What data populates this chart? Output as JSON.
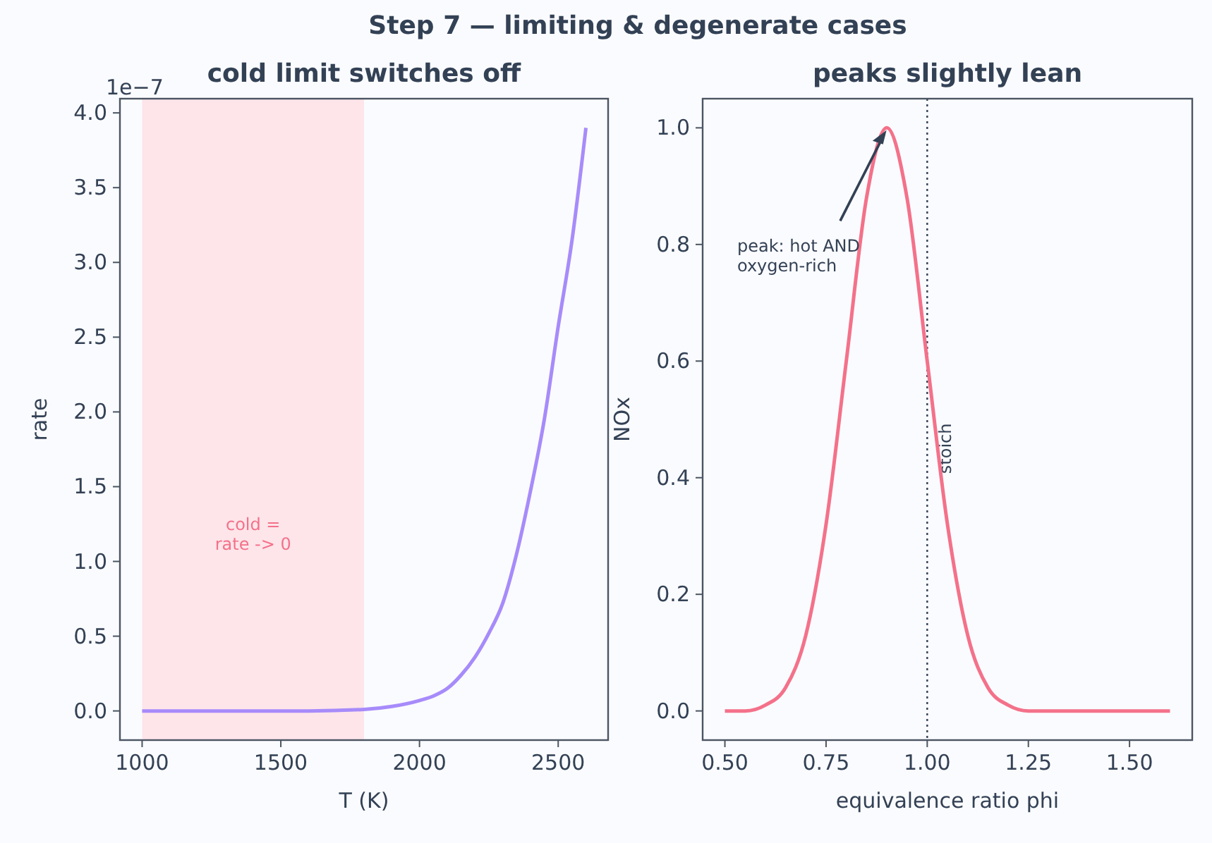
{
  "chart_data": [
    {
      "type": "line",
      "title": "cold limit switches off",
      "xlabel": "T (K)",
      "ylabel": "rate",
      "annotations": [
        "1e−7",
        "Step 7 — limiting & degenerate cases"
      ],
      "x": [
        1000,
        1200,
        1400,
        1600,
        1800,
        1900,
        2000,
        2050,
        2100,
        2150,
        2200,
        2250,
        2300,
        2350,
        2400,
        2450,
        2500,
        2550,
        2600
      ],
      "series": [
        {
          "color": "#a78bfa",
          "values": [
            0,
            0,
            0,
            0,
            0.01,
            0.03,
            0.07,
            0.1,
            0.15,
            0.24,
            0.36,
            0.52,
            0.72,
            1.05,
            1.47,
            1.95,
            2.57,
            3.15,
            3.9
          ]
        }
      ],
      "xlim": [
        920,
        2680
      ],
      "xticks": [
        1000,
        1500,
        2000,
        2500
      ],
      "ylim": [
        -0.195,
        4.095
      ],
      "yticks": [
        {
          "value": 0,
          "label": "0.0"
        },
        {
          "value": 0.5,
          "label": "0.5"
        },
        {
          "value": 1,
          "label": "1.0"
        },
        {
          "value": 1.5,
          "label": "1.5"
        },
        {
          "value": 2,
          "label": "2.0"
        },
        {
          "value": 2.5,
          "label": "2.5"
        },
        {
          "value": 3,
          "label": "3.0"
        },
        {
          "value": 3.5,
          "label": "3.5"
        },
        {
          "value": 4,
          "label": "4.0"
        }
      ],
      "bands": [
        {
          "axis": "x",
          "from": 1000,
          "to": 1800,
          "label": "cold =\nrate -> 0",
          "color": "#fde2e8"
        }
      ],
      "line_style": "solid",
      "marker": "none",
      "grid": false
    },
    {
      "type": "line",
      "title": "peaks slightly lean",
      "xlabel": "equivalence ratio phi",
      "ylabel": "NOx",
      "annotations": [
        {
          "text": "peak: hot AND\noxygen-rich",
          "x": 0.9,
          "y": 1.0
        }
      ],
      "x": [
        0.5,
        0.55,
        0.6,
        0.65,
        0.7,
        0.75,
        0.8,
        0.85,
        0.9,
        0.95,
        1.0,
        1.05,
        1.1,
        1.15,
        1.2,
        1.25,
        1.3,
        1.4,
        1.5,
        1.6
      ],
      "series": [
        {
          "color": "#f4718a",
          "values": [
            0,
            0,
            0.01,
            0.04,
            0.13,
            0.32,
            0.6,
            0.88,
            1.0,
            0.88,
            0.6,
            0.32,
            0.13,
            0.04,
            0.01,
            0,
            0,
            0,
            0,
            0
          ]
        }
      ],
      "xlim": [
        0.445,
        1.655
      ],
      "xticks": [
        {
          "value": 0.5,
          "label": "0.50"
        },
        {
          "value": 0.75,
          "label": "0.75"
        },
        {
          "value": 1,
          "label": "1.00"
        },
        {
          "value": 1.25,
          "label": "1.25"
        },
        {
          "value": 1.5,
          "label": "1.50"
        }
      ],
      "ylim": [
        -0.05,
        1.05
      ],
      "yticks": [
        {
          "value": 0,
          "label": "0.0"
        },
        {
          "value": 0.2,
          "label": "0.2"
        },
        {
          "value": 0.4,
          "label": "0.4"
        },
        {
          "value": 0.6,
          "label": "0.6"
        },
        {
          "value": 0.8,
          "label": "0.8"
        },
        {
          "value": 1,
          "label": "1.0"
        }
      ],
      "ref_lines": [
        {
          "axis": "x",
          "value": 1.0,
          "label": "stoich",
          "color": "#334155",
          "line_style": "dotted"
        }
      ],
      "line_style": "solid",
      "marker": "none",
      "grid": false
    }
  ]
}
